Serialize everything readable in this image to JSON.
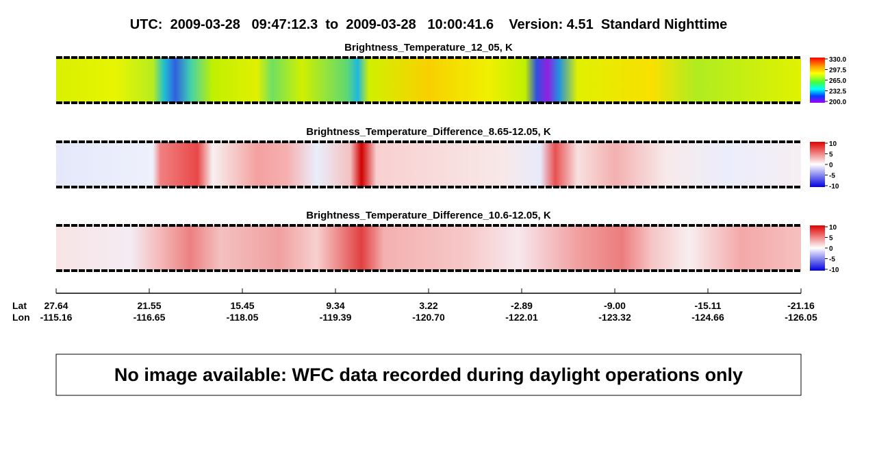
{
  "header": {
    "title": "UTC:  2009-03-28   09:47:12.3  to  2009-03-28   10:00:41.6    Version: 4.51  Standard Nighttime"
  },
  "panels": [
    {
      "title": "Brightness_Temperature_12_05, K",
      "colorbar_labels": [
        "330.0",
        "297.5",
        "265.0",
        "232.5",
        "200.0"
      ]
    },
    {
      "title": "Brightness_Temperature_Difference_8.65-12.05, K",
      "colorbar_labels": [
        "10",
        "5",
        "0",
        "-5",
        "-10"
      ]
    },
    {
      "title": "Brightness_Temperature_Difference_10.6-12.05, K",
      "colorbar_labels": [
        "10",
        "5",
        "0",
        "-5",
        "-10"
      ]
    }
  ],
  "axis": {
    "row_labels": [
      "Lat",
      "Lon"
    ],
    "lat": [
      "27.64",
      "21.55",
      "15.45",
      "9.34",
      "3.22",
      "-2.89",
      "-9.00",
      "-15.11",
      "-21.16"
    ],
    "lon": [
      "-115.16",
      "-116.65",
      "-118.05",
      "-119.39",
      "-120.70",
      "-122.01",
      "-123.32",
      "-124.66",
      "-126.05"
    ]
  },
  "note": "No image available: WFC data recorded during daylight operations only"
}
